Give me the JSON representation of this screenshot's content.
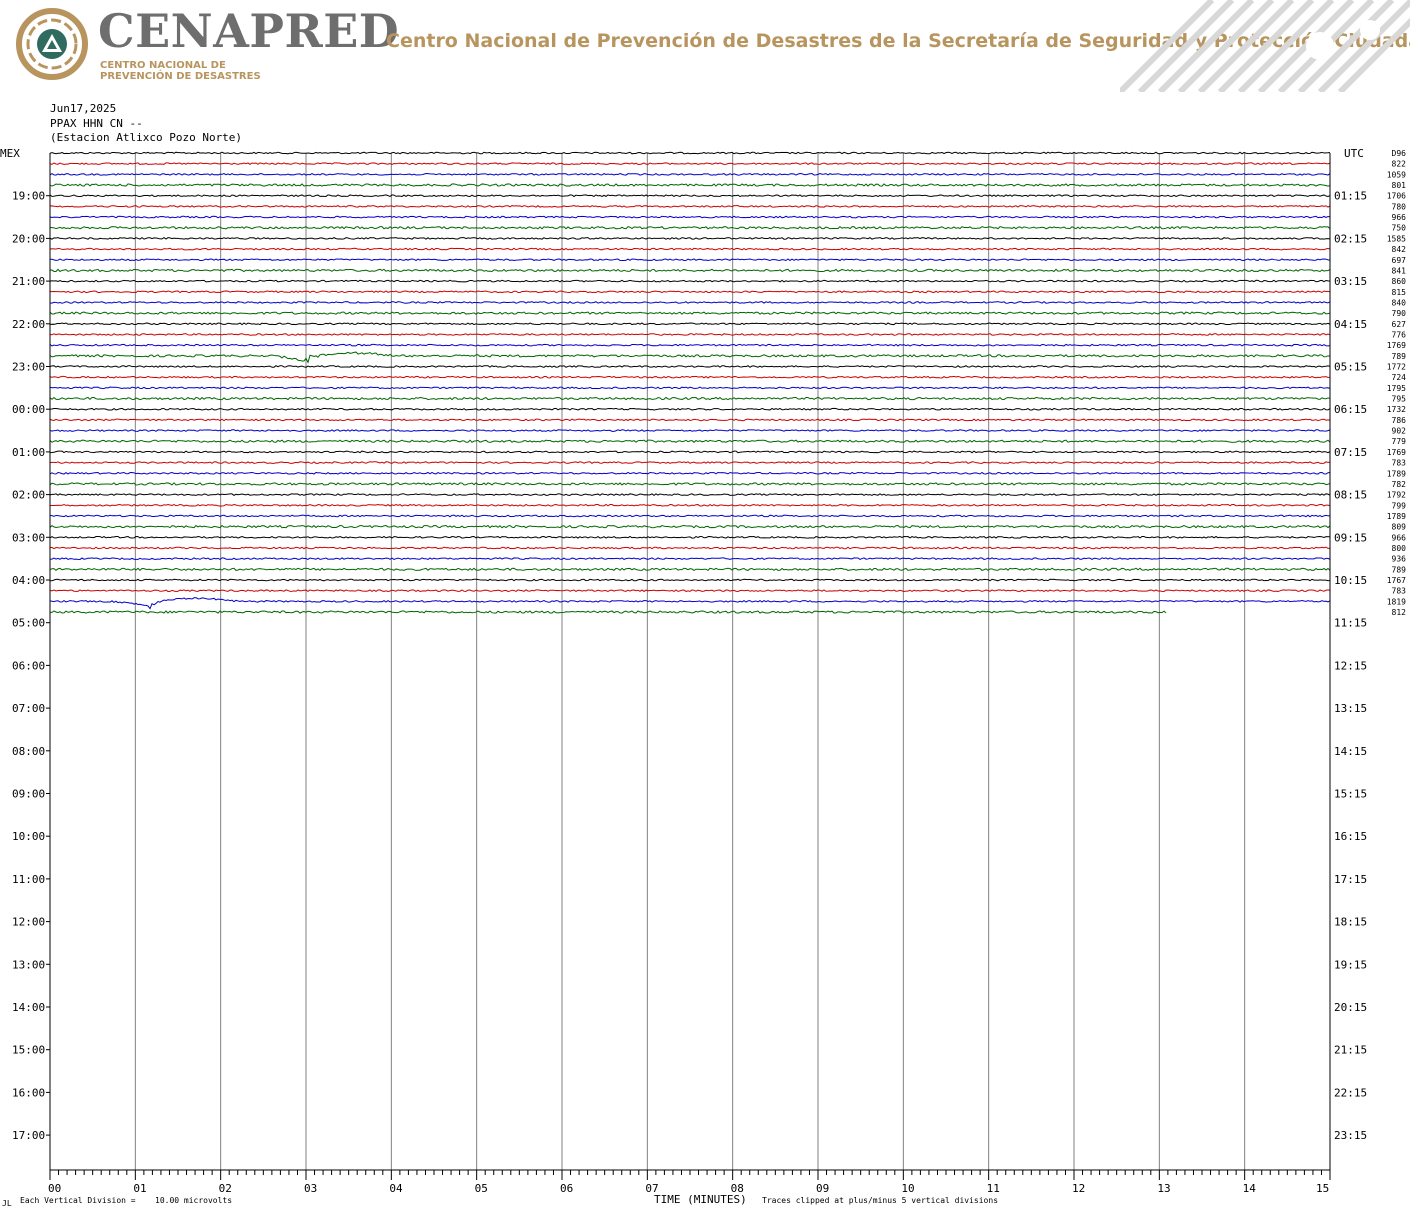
{
  "header": {
    "brand": "CENAPRED",
    "brand_sub_line1": "CENTRO NACIONAL DE",
    "brand_sub_line2": "PREVENCIÓN DE DESASTRES",
    "agency": "Centro Nacional de Prevención de Desastres de la Secretaría de Seguridad y Protección Ciudadana",
    "brand_color": "#6e6e6e",
    "accent_color": "#b8955f"
  },
  "meta": {
    "date": "Jun17,2025",
    "channel": "PPAX HHN CN --",
    "station": "(Estacion Atlixco Pozo Norte)"
  },
  "chart_data": {
    "type": "line",
    "title": "",
    "xlabel": "TIME (MINUTES)",
    "left_axis_label": "MEX",
    "right_axis_label": "UTC",
    "xlim": [
      0,
      15
    ],
    "x_tick_labels": [
      "00",
      "01",
      "02",
      "03",
      "04",
      "05",
      "06",
      "07",
      "08",
      "09",
      "10",
      "11",
      "12",
      "13",
      "14",
      "15"
    ],
    "left_hour_labels": [
      "19:00",
      "20:00",
      "21:00",
      "22:00",
      "23:00",
      "00:00",
      "01:00",
      "02:00",
      "03:00",
      "04:00",
      "05:00",
      "06:00",
      "07:00",
      "08:00",
      "09:00",
      "10:00",
      "11:00",
      "12:00",
      "13:00",
      "14:00",
      "15:00",
      "16:00",
      "17:00"
    ],
    "right_hour_labels": [
      "01:15",
      "02:15",
      "03:15",
      "04:15",
      "05:15",
      "06:15",
      "07:15",
      "08:15",
      "09:15",
      "10:15",
      "11:15",
      "12:15",
      "13:15",
      "14:15",
      "15:15",
      "16:15",
      "17:15",
      "18:15",
      "19:15",
      "20:15",
      "21:15",
      "22:15",
      "23:15"
    ],
    "trace_colors": [
      "#000000",
      "#cc0000",
      "#0000cc",
      "#006600"
    ],
    "trace_count_drawn": 44,
    "rms_values": [
      "D96",
      "822",
      "1059",
      "801",
      "1706",
      "780",
      "966",
      "750",
      "1585",
      "842",
      "697",
      "841",
      "860",
      "815",
      "840",
      "790",
      "627",
      "776",
      "1769",
      "789",
      "1772",
      "724",
      "1795",
      "795",
      "1732",
      "786",
      "902",
      "779",
      "1769",
      "783",
      "1789",
      "782",
      "1792",
      "799",
      "1789",
      "809",
      "966",
      "800",
      "936",
      "789",
      "1767",
      "783",
      "1819",
      "812"
    ],
    "events": [
      {
        "trace": 19,
        "minute": 3.0,
        "note": "long-period dip"
      },
      {
        "trace": 42,
        "minute": 1.15,
        "note": "long-period dip"
      }
    ],
    "footer_left": "Each Vertical Division =",
    "footer_scale": "10.00 microvolts",
    "footer_right": "Traces clipped at plus/minus 5 vertical divisions",
    "corner_mark": "JL"
  }
}
